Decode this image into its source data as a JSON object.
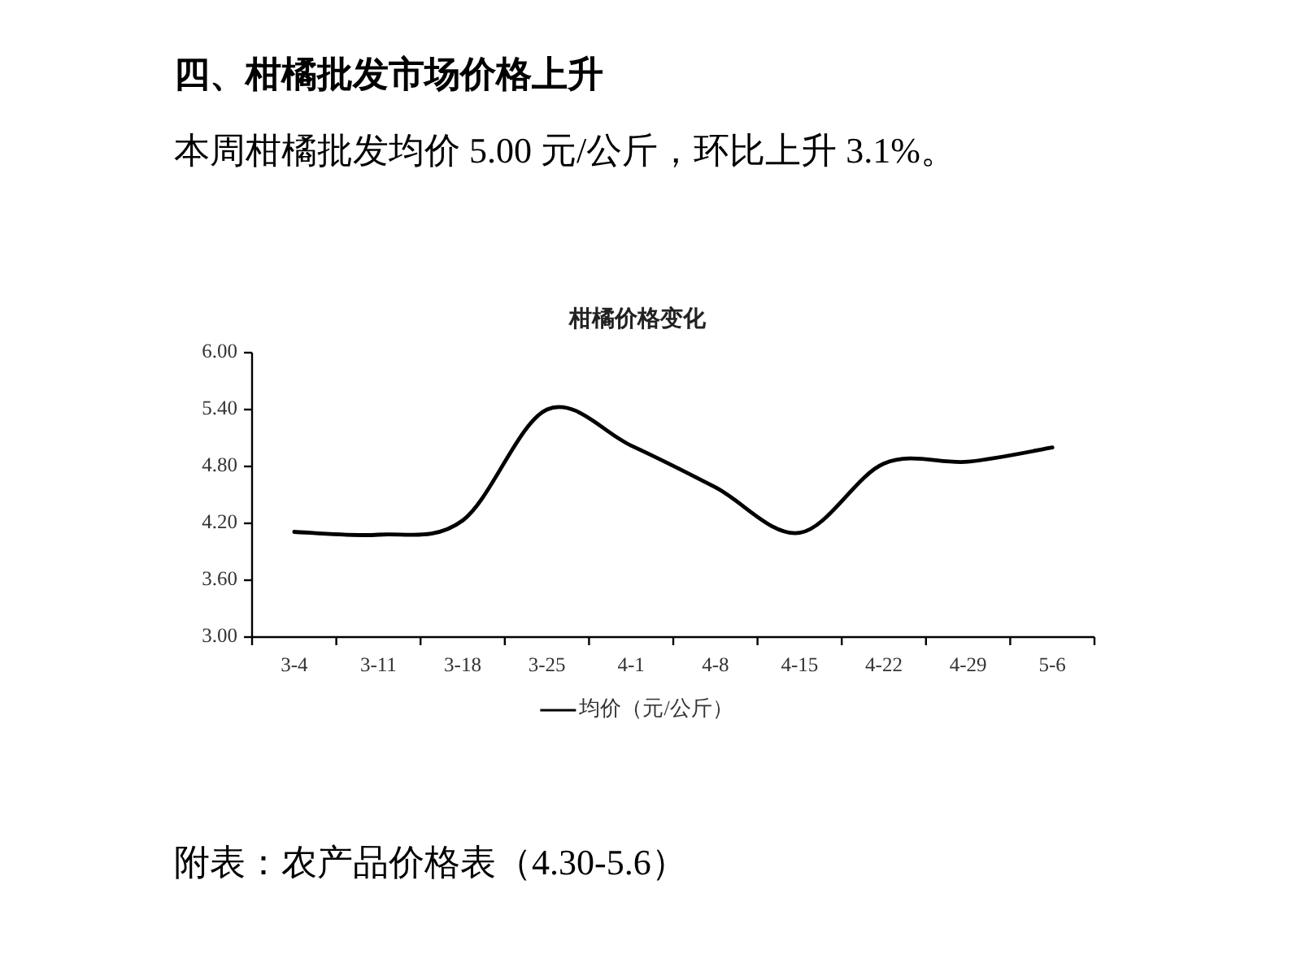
{
  "chart_data": {
    "type": "line",
    "title": "柑橘价格变化",
    "annotations": [
      "四、柑橘批发市场价格上升",
      "本周柑橘批发均价 5.00 元/公斤，环比上升 3.1%。",
      "附表：农产品价格表（4.30-5.6）"
    ],
    "categories": [
      "3-4",
      "3-11",
      "3-18",
      "3-25",
      "4-1",
      "4-8",
      "4-15",
      "4-22",
      "4-29",
      "5-6"
    ],
    "series": [
      {
        "name": "均价（元/公斤）",
        "color": "#000000",
        "values": [
          4.11,
          4.08,
          4.23,
          5.4,
          5.02,
          4.58,
          4.1,
          4.83,
          4.85,
          5.0
        ]
      }
    ],
    "ylim": [
      3,
      6
    ],
    "yticks": [
      {
        "value": 3,
        "label": "3.00"
      },
      {
        "value": 3.6,
        "label": "3.60"
      },
      {
        "value": 4.2,
        "label": "4.20"
      },
      {
        "value": 4.8,
        "label": "4.80"
      },
      {
        "value": 5.4,
        "label": "5.40"
      },
      {
        "value": 6,
        "label": "6.00"
      }
    ],
    "legend": "bottom",
    "marker": "none",
    "line_style": "solid"
  }
}
